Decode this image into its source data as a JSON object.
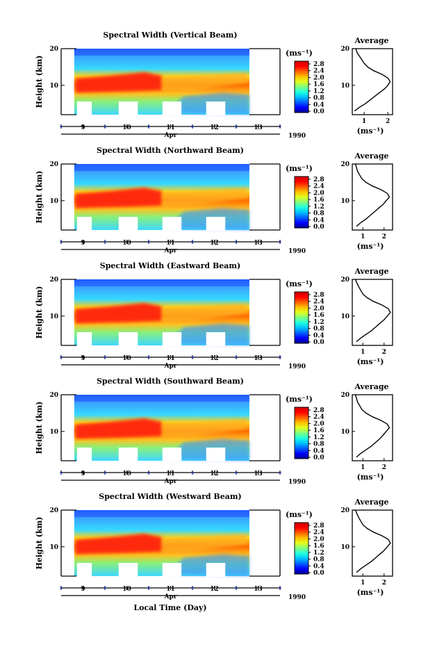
{
  "figure": {
    "xlabel": "Local Time (Day)",
    "colorbar_unit": "(ms⁻¹)",
    "colorbar_ticks": [
      "0.0",
      "0.4",
      "0.8",
      "1.2",
      "1.6",
      "2.0",
      "2.4",
      "2.8"
    ],
    "colormap": [
      "#00008f",
      "#0000ff",
      "#0060ff",
      "#00c0ff",
      "#20ffdf",
      "#80ff80",
      "#dfff20",
      "#ffc000",
      "#ff6000",
      "#ff0000",
      "#d00000"
    ],
    "average_title": "Average",
    "average_xlabel": "(ms⁻¹)",
    "day_ticks": [
      "9",
      "10",
      "11",
      "12",
      "13"
    ],
    "month_label": "Apr",
    "year_label": "1990",
    "ylabel": "Height (km)",
    "height_ticks": [
      "10",
      "20"
    ]
  },
  "chart_data": [
    {
      "type": "heatmap",
      "title": "Spectral Width (Vertical Beam)",
      "ylabel": "Height (km)",
      "xlabel": "Local Time (Day)",
      "x_range_days": [
        8.5,
        13.5
      ],
      "data_coverage_days": [
        8.8,
        12.8
      ],
      "ylim_km": [
        2,
        20
      ],
      "yticks": [
        10,
        20
      ],
      "colorbar": {
        "unit": "(ms⁻¹)",
        "min": 0.0,
        "max": 2.8
      },
      "high_width_layer_km": [
        8,
        13
      ],
      "average_profile": {
        "xlim": [
          0.5,
          2.2
        ],
        "xticks": [
          1,
          2
        ],
        "height_km": [
          3,
          4,
          5,
          6,
          7,
          8,
          9,
          10,
          11,
          12,
          13,
          14,
          15,
          16,
          17,
          18,
          19,
          20
        ],
        "value": [
          0.6,
          0.8,
          1.05,
          1.25,
          1.45,
          1.65,
          1.85,
          2.0,
          2.1,
          2.0,
          1.75,
          1.4,
          1.15,
          1.0,
          0.9,
          0.8,
          0.7,
          0.65
        ]
      }
    },
    {
      "type": "heatmap",
      "title": "Spectral Width (Northward Beam)",
      "ylabel": "Height (km)",
      "x_range_days": [
        8.5,
        13.5
      ],
      "data_coverage_days": [
        8.8,
        12.8
      ],
      "ylim_km": [
        2,
        20
      ],
      "yticks": [
        10,
        20
      ],
      "colorbar": {
        "unit": "(ms⁻¹)",
        "min": 0.0,
        "max": 2.8
      },
      "high_width_layer_km": [
        8,
        13
      ],
      "average_profile": {
        "xlim": [
          0.5,
          2.4
        ],
        "xticks": [
          1,
          2
        ],
        "height_km": [
          3,
          4,
          5,
          6,
          7,
          8,
          9,
          10,
          11,
          12,
          13,
          14,
          15,
          16,
          17,
          18,
          19,
          20
        ],
        "value": [
          0.7,
          0.9,
          1.15,
          1.35,
          1.55,
          1.75,
          1.95,
          2.1,
          2.25,
          2.15,
          1.85,
          1.45,
          1.15,
          0.95,
          0.85,
          0.75,
          0.7,
          0.65
        ]
      }
    },
    {
      "type": "heatmap",
      "title": "Spectral Width (Eastward Beam)",
      "ylabel": "Height (km)",
      "x_range_days": [
        8.5,
        13.5
      ],
      "data_coverage_days": [
        8.8,
        12.8
      ],
      "ylim_km": [
        2,
        20
      ],
      "yticks": [
        10,
        20
      ],
      "colorbar": {
        "unit": "(ms⁻¹)",
        "min": 0.0,
        "max": 2.8
      },
      "high_width_layer_km": [
        8,
        13
      ],
      "average_profile": {
        "xlim": [
          0.5,
          2.4
        ],
        "xticks": [
          1,
          2
        ],
        "height_km": [
          3,
          4,
          5,
          6,
          7,
          8,
          9,
          10,
          11,
          12,
          13,
          14,
          15,
          16,
          17,
          18,
          19,
          20
        ],
        "value": [
          0.7,
          0.9,
          1.15,
          1.4,
          1.6,
          1.8,
          2.0,
          2.15,
          2.3,
          2.2,
          1.9,
          1.5,
          1.2,
          1.0,
          0.9,
          0.8,
          0.72,
          0.65
        ]
      }
    },
    {
      "type": "heatmap",
      "title": "Spectral Width (Southward Beam)",
      "ylabel": "Height (km)",
      "x_range_days": [
        8.5,
        13.5
      ],
      "data_coverage_days": [
        8.8,
        12.8
      ],
      "ylim_km": [
        2,
        20
      ],
      "yticks": [
        10,
        20
      ],
      "colorbar": {
        "unit": "(ms⁻¹)",
        "min": 0.0,
        "max": 2.8
      },
      "high_width_layer_km": [
        8,
        13
      ],
      "average_profile": {
        "xlim": [
          0.5,
          2.4
        ],
        "xticks": [
          1,
          2
        ],
        "height_km": [
          3,
          4,
          5,
          6,
          7,
          8,
          9,
          10,
          11,
          12,
          13,
          14,
          15,
          16,
          17,
          18,
          19,
          20
        ],
        "value": [
          0.7,
          0.9,
          1.15,
          1.4,
          1.6,
          1.8,
          1.95,
          2.1,
          2.25,
          2.15,
          1.85,
          1.45,
          1.15,
          0.95,
          0.85,
          0.75,
          0.7,
          0.65
        ]
      }
    },
    {
      "type": "heatmap",
      "title": "Spectral Width (Westward Beam)",
      "ylabel": "Height (km)",
      "x_range_days": [
        8.5,
        13.5
      ],
      "data_coverage_days": [
        8.8,
        12.8
      ],
      "ylim_km": [
        2,
        20
      ],
      "yticks": [
        10,
        20
      ],
      "colorbar": {
        "unit": "(ms⁻¹)",
        "min": 0.0,
        "max": 2.8
      },
      "high_width_layer_km": [
        8,
        13
      ],
      "average_profile": {
        "xlim": [
          0.5,
          2.4
        ],
        "xticks": [
          1,
          2
        ],
        "height_km": [
          3,
          4,
          5,
          6,
          7,
          8,
          9,
          10,
          11,
          12,
          13,
          14,
          15,
          16,
          17,
          18,
          19,
          20
        ],
        "value": [
          0.7,
          0.9,
          1.15,
          1.4,
          1.6,
          1.8,
          2.0,
          2.15,
          2.3,
          2.2,
          1.9,
          1.5,
          1.2,
          1.0,
          0.9,
          0.8,
          0.72,
          0.65
        ]
      }
    }
  ]
}
